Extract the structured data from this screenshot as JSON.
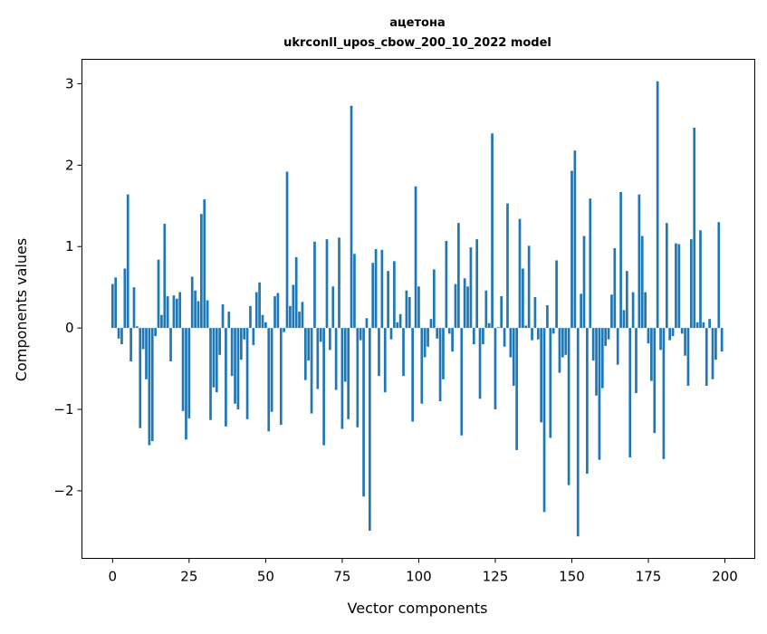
{
  "chart_data": {
    "type": "bar",
    "title": [
      "ацетона",
      "ukrconll_upos_cbow_200_10_2022 model"
    ],
    "xlabel": "Vector components",
    "ylabel": "Components values",
    "xlim": [
      -10,
      209.75
    ],
    "ylim": [
      -2.83,
      3.3
    ],
    "xticks": [
      0,
      25,
      50,
      75,
      100,
      125,
      150,
      175,
      200
    ],
    "xtick_labels": [
      "0",
      "25",
      "50",
      "75",
      "100",
      "125",
      "150",
      "175",
      "200"
    ],
    "yticks": [
      -2,
      -1,
      0,
      1,
      2,
      3
    ],
    "ytick_labels": [
      "−2",
      "−1",
      "0",
      "1",
      "2",
      "3"
    ],
    "grid": false,
    "bar_color": "#1f77b4",
    "values": [
      0.54,
      0.62,
      -0.13,
      -0.2,
      0.73,
      1.64,
      -0.41,
      0.5,
      0.02,
      -1.23,
      -0.26,
      -0.63,
      -1.44,
      -1.39,
      -0.1,
      0.84,
      0.16,
      1.28,
      0.39,
      -0.41,
      0.4,
      0.36,
      0.44,
      -1.02,
      -1.37,
      -1.11,
      0.63,
      0.46,
      0.33,
      1.4,
      1.58,
      0.34,
      -1.13,
      -0.73,
      -0.79,
      -0.33,
      0.29,
      -1.21,
      0.2,
      -0.59,
      -0.93,
      -1.0,
      -0.39,
      -0.14,
      -1.12,
      0.27,
      -0.21,
      0.44,
      0.56,
      0.16,
      0.07,
      -1.27,
      -1.03,
      0.39,
      0.43,
      -1.19,
      -0.05,
      1.92,
      0.27,
      0.53,
      0.87,
      0.2,
      0.32,
      -0.64,
      -0.4,
      -1.05,
      1.06,
      -0.75,
      -0.17,
      -1.44,
      1.09,
      -0.27,
      0.51,
      -0.76,
      1.11,
      -1.24,
      -0.66,
      -1.12,
      2.73,
      0.91,
      -1.22,
      -0.15,
      -2.07,
      0.12,
      -2.49,
      0.8,
      0.97,
      -0.59,
      0.96,
      -0.79,
      0.7,
      -0.14,
      0.82,
      0.07,
      0.17,
      -0.59,
      0.46,
      0.38,
      -1.15,
      1.74,
      0.51,
      -0.93,
      -0.36,
      -0.23,
      0.11,
      0.72,
      -0.13,
      -0.9,
      -0.63,
      1.07,
      -0.07,
      -0.29,
      0.54,
      1.29,
      -1.32,
      0.61,
      0.51,
      0.99,
      -0.2,
      1.09,
      -0.87,
      -0.2,
      0.46,
      0.06,
      2.39,
      -1.0,
      0.01,
      0.39,
      -0.23,
      1.53,
      -0.36,
      -0.71,
      -1.5,
      1.34,
      0.73,
      0.03,
      1.01,
      -0.15,
      0.38,
      -0.14,
      -1.16,
      -2.26,
      0.28,
      -1.35,
      -0.07,
      0.83,
      -0.55,
      -0.36,
      -0.33,
      -1.93,
      1.93,
      2.18,
      -2.56,
      0.42,
      1.13,
      -1.79,
      1.59,
      -0.4,
      -0.83,
      -1.62,
      -0.74,
      -0.22,
      -0.14,
      0.41,
      0.98,
      -0.45,
      1.67,
      0.22,
      0.7,
      -1.59,
      0.44,
      -0.8,
      1.64,
      1.13,
      0.44,
      -0.19,
      -0.65,
      -1.29,
      3.03,
      -0.27,
      -1.61,
      1.29,
      -0.15,
      -0.1,
      1.04,
      1.03,
      -0.07,
      -0.34,
      -0.71,
      1.09,
      2.46,
      0.07,
      1.2,
      0.07,
      -0.71,
      0.11,
      -0.63,
      -0.39,
      1.3,
      -0.29
    ]
  }
}
